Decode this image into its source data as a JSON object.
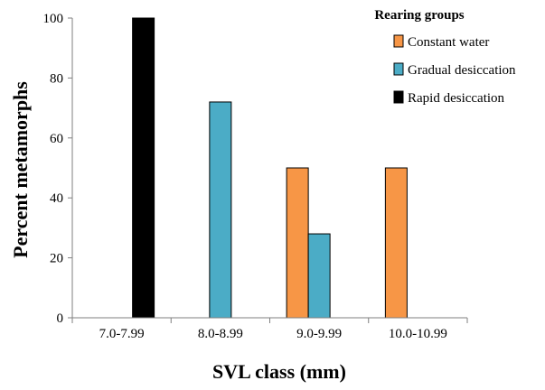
{
  "chart_data": {
    "type": "bar",
    "categories": [
      "7.0-7.99",
      "8.0-8.99",
      "9.0-9.99",
      "10.0-10.99"
    ],
    "series": [
      {
        "name": "Constant water",
        "color": "#f79646",
        "values": [
          0,
          0,
          50,
          50
        ]
      },
      {
        "name": "Gradual desiccation",
        "color": "#4bacc6",
        "values": [
          0,
          72,
          28,
          0
        ]
      },
      {
        "name": "Rapid desiccation",
        "color": "#000000",
        "values": [
          100,
          0,
          0,
          0
        ]
      }
    ],
    "xlabel": "SVL class (mm)",
    "ylabel": "Percent metamorphs",
    "ylim": [
      0,
      100
    ],
    "yticks": [
      0,
      20,
      40,
      60,
      80,
      100
    ],
    "grid": false,
    "legend": {
      "title": "Rearing groups",
      "placement": "top-right"
    }
  }
}
